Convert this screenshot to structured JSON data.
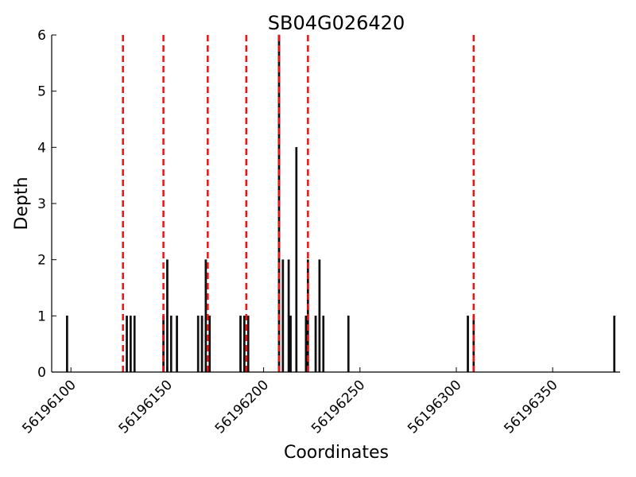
{
  "chart_data": {
    "type": "bar",
    "title": "SB04G026420",
    "xlabel": "Coordinates",
    "ylabel": "Depth",
    "xlim": [
      56196090,
      56196385
    ],
    "ylim": [
      0,
      6
    ],
    "yticks": [
      0,
      1,
      2,
      3,
      4,
      5,
      6
    ],
    "xticks": [
      56196100,
      56196150,
      56196200,
      56196250,
      56196300,
      56196350
    ],
    "grid": false,
    "bar_color": "#111111",
    "bar_width": 1,
    "points": [
      {
        "x": 56196098,
        "y": 1
      },
      {
        "x": 56196129,
        "y": 1
      },
      {
        "x": 56196131,
        "y": 1
      },
      {
        "x": 56196133,
        "y": 1
      },
      {
        "x": 56196148,
        "y": 1
      },
      {
        "x": 56196150,
        "y": 2
      },
      {
        "x": 56196152,
        "y": 1
      },
      {
        "x": 56196155,
        "y": 1
      },
      {
        "x": 56196166,
        "y": 1
      },
      {
        "x": 56196168,
        "y": 1
      },
      {
        "x": 56196170,
        "y": 2
      },
      {
        "x": 56196172,
        "y": 1
      },
      {
        "x": 56196188,
        "y": 1
      },
      {
        "x": 56196190,
        "y": 1
      },
      {
        "x": 56196192,
        "y": 1
      },
      {
        "x": 56196208,
        "y": 6
      },
      {
        "x": 56196210,
        "y": 2
      },
      {
        "x": 56196213,
        "y": 2
      },
      {
        "x": 56196214,
        "y": 1
      },
      {
        "x": 56196217,
        "y": 4
      },
      {
        "x": 56196222,
        "y": 1
      },
      {
        "x": 56196223,
        "y": 2
      },
      {
        "x": 56196227,
        "y": 1
      },
      {
        "x": 56196229,
        "y": 2
      },
      {
        "x": 56196231,
        "y": 1
      },
      {
        "x": 56196244,
        "y": 1
      },
      {
        "x": 56196306,
        "y": 1
      },
      {
        "x": 56196309,
        "y": 1
      },
      {
        "x": 56196382,
        "y": 1
      }
    ],
    "reference_lines": {
      "color": "#ee1111",
      "style": "dashed",
      "x": [
        56196127,
        56196148,
        56196171,
        56196191,
        56196208,
        56196223,
        56196309
      ]
    }
  }
}
